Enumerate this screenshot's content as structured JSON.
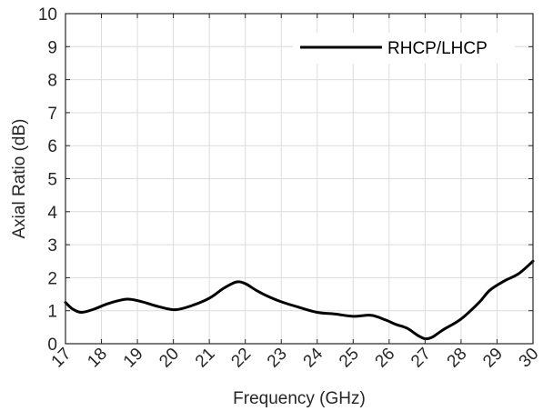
{
  "chart_data": {
    "type": "line",
    "title": "",
    "xlabel": "Frequency (GHz)",
    "ylabel": "Axial Ratio (dB)",
    "xlim": [
      17,
      30
    ],
    "ylim": [
      0,
      10
    ],
    "xticks": [
      "17",
      "18",
      "19",
      "20",
      "21",
      "22",
      "23",
      "24",
      "25",
      "26",
      "27",
      "28",
      "29",
      "30"
    ],
    "yticks": [
      "0",
      "1",
      "2",
      "3",
      "4",
      "5",
      "6",
      "7",
      "8",
      "9",
      "10"
    ],
    "grid": true,
    "legend_position": "top-right",
    "series": [
      {
        "name": "RHCP/LHCP",
        "color": "#000000",
        "x": [
          17.0,
          17.2,
          17.45,
          17.8,
          18.2,
          18.7,
          19.1,
          19.6,
          20.05,
          20.5,
          21.0,
          21.4,
          21.75,
          22.0,
          22.3,
          22.6,
          23.0,
          23.5,
          24.0,
          24.5,
          25.0,
          25.5,
          25.9,
          26.2,
          26.5,
          26.8,
          27.0,
          27.2,
          27.5,
          28.0,
          28.5,
          28.8,
          29.2,
          29.6,
          30.0
        ],
        "y": [
          1.25,
          1.05,
          0.95,
          1.05,
          1.22,
          1.35,
          1.28,
          1.12,
          1.03,
          1.15,
          1.38,
          1.68,
          1.87,
          1.82,
          1.62,
          1.45,
          1.27,
          1.1,
          0.95,
          0.9,
          0.83,
          0.86,
          0.72,
          0.58,
          0.47,
          0.25,
          0.15,
          0.2,
          0.42,
          0.75,
          1.25,
          1.62,
          1.9,
          2.12,
          2.5
        ]
      }
    ]
  }
}
